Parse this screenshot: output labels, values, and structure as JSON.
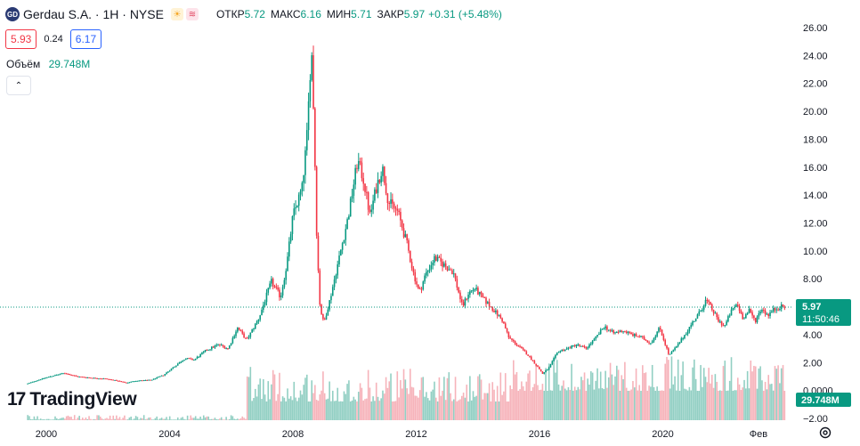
{
  "header": {
    "logo_text": "GD",
    "symbol_title": "Gerdau S.A. · 1H · NYSE",
    "icons": [
      "sun-icon",
      "wave-icon"
    ],
    "open_label": "ОТКР",
    "open_value": "5.72",
    "high_label": "МАКС",
    "high_value": "6.16",
    "low_label": "МИН",
    "low_value": "5.71",
    "close_label": "ЗАКР",
    "close_value": "5.97",
    "change": "+0.31 (+5.48%)"
  },
  "quote": {
    "sell": "5.93",
    "spread": "0.24",
    "buy": "6.17"
  },
  "volume": {
    "label": "Объём",
    "value": "29.748M"
  },
  "brand": {
    "name": "TradingView"
  },
  "colors": {
    "up": "#089981",
    "down": "#f23645",
    "price_line": "#089981",
    "up_volume": "#7fc7b8",
    "down_volume": "#f5a6ae",
    "axis_text": "#131722"
  },
  "chart_data": {
    "type": "candlestick",
    "title": "",
    "xlabel": "",
    "ylabel": "",
    "ylim": [
      -2,
      26
    ],
    "xlim": [
      1998.5,
      2024.2
    ],
    "y_ticks": [
      "26.00",
      "24.00",
      "22.00",
      "20.00",
      "18.00",
      "16.00",
      "14.00",
      "12.00",
      "10.00",
      "8.00",
      "6.00",
      "4.00",
      "2.00",
      "0.0000",
      "−2.00"
    ],
    "x_ticks": [
      {
        "label": "2000",
        "x": 2000
      },
      {
        "label": "2004",
        "x": 2004
      },
      {
        "label": "2008",
        "x": 2008
      },
      {
        "label": "2012",
        "x": 2012
      },
      {
        "label": "2016",
        "x": 2016
      },
      {
        "label": "2020",
        "x": 2020
      },
      {
        "label": "Фев",
        "x": 2023.1
      }
    ],
    "grid": false,
    "price_series": [
      [
        1999.4,
        0.5
      ],
      [
        1999.8,
        0.8
      ],
      [
        2000.2,
        1.05
      ],
      [
        2000.6,
        1.25
      ],
      [
        2001.0,
        1.0
      ],
      [
        2001.5,
        0.9
      ],
      [
        2001.9,
        0.85
      ],
      [
        2002.3,
        0.7
      ],
      [
        2002.6,
        0.55
      ],
      [
        2002.9,
        0.7
      ],
      [
        2003.4,
        0.75
      ],
      [
        2003.8,
        1.1
      ],
      [
        2004.2,
        1.8
      ],
      [
        2004.5,
        2.3
      ],
      [
        2004.8,
        2.2
      ],
      [
        2005.2,
        2.9
      ],
      [
        2005.6,
        3.3
      ],
      [
        2005.9,
        3.0
      ],
      [
        2006.2,
        4.5
      ],
      [
        2006.5,
        3.6
      ],
      [
        2006.9,
        5.2
      ],
      [
        2007.1,
        6.5
      ],
      [
        2007.3,
        7.8
      ],
      [
        2007.6,
        6.7
      ],
      [
        2007.8,
        9.0
      ],
      [
        2008.0,
        12.5
      ],
      [
        2008.3,
        14.5
      ],
      [
        2008.45,
        18.0
      ],
      [
        2008.52,
        21.0
      ],
      [
        2008.6,
        24.8
      ],
      [
        2008.68,
        19.5
      ],
      [
        2008.78,
        10.5
      ],
      [
        2008.88,
        6.0
      ],
      [
        2009.0,
        4.8
      ],
      [
        2009.2,
        6.5
      ],
      [
        2009.4,
        8.5
      ],
      [
        2009.6,
        10.5
      ],
      [
        2009.8,
        12.5
      ],
      [
        2010.1,
        16.5
      ],
      [
        2010.3,
        15.0
      ],
      [
        2010.5,
        12.5
      ],
      [
        2010.7,
        14.5
      ],
      [
        2010.9,
        16.0
      ],
      [
        2011.1,
        13.5
      ],
      [
        2011.4,
        12.8
      ],
      [
        2011.7,
        10.5
      ],
      [
        2011.9,
        8.5
      ],
      [
        2012.1,
        7.0
      ],
      [
        2012.3,
        8.3
      ],
      [
        2012.6,
        9.5
      ],
      [
        2012.9,
        9.0
      ],
      [
        2013.2,
        8.5
      ],
      [
        2013.5,
        6.0
      ],
      [
        2013.7,
        7.0
      ],
      [
        2013.9,
        7.3
      ],
      [
        2014.2,
        6.5
      ],
      [
        2014.5,
        5.8
      ],
      [
        2014.8,
        5.0
      ],
      [
        2015.0,
        3.8
      ],
      [
        2015.3,
        3.2
      ],
      [
        2015.6,
        2.6
      ],
      [
        2015.9,
        1.8
      ],
      [
        2016.1,
        1.2
      ],
      [
        2016.3,
        1.6
      ],
      [
        2016.6,
        2.8
      ],
      [
        2016.9,
        3.0
      ],
      [
        2017.2,
        3.3
      ],
      [
        2017.5,
        3.0
      ],
      [
        2017.8,
        3.7
      ],
      [
        2018.1,
        4.6
      ],
      [
        2018.4,
        4.1
      ],
      [
        2018.7,
        4.3
      ],
      [
        2019.0,
        4.0
      ],
      [
        2019.3,
        3.8
      ],
      [
        2019.6,
        3.4
      ],
      [
        2019.9,
        4.5
      ],
      [
        2020.2,
        2.5
      ],
      [
        2020.5,
        3.3
      ],
      [
        2020.8,
        4.3
      ],
      [
        2021.0,
        5.0
      ],
      [
        2021.2,
        5.6
      ],
      [
        2021.4,
        6.5
      ],
      [
        2021.6,
        5.8
      ],
      [
        2021.8,
        5.0
      ],
      [
        2022.0,
        4.6
      ],
      [
        2022.2,
        5.6
      ],
      [
        2022.4,
        6.2
      ],
      [
        2022.6,
        5.2
      ],
      [
        2022.8,
        5.7
      ],
      [
        2023.0,
        5.0
      ],
      [
        2023.2,
        5.9
      ],
      [
        2023.4,
        5.4
      ],
      [
        2023.6,
        5.8
      ],
      [
        2023.8,
        6.0
      ],
      [
        2023.95,
        5.97
      ]
    ],
    "last_price": "5.97",
    "countdown": "11:50:46",
    "last_price_value": 5.97,
    "volume_label": "29.748M"
  }
}
